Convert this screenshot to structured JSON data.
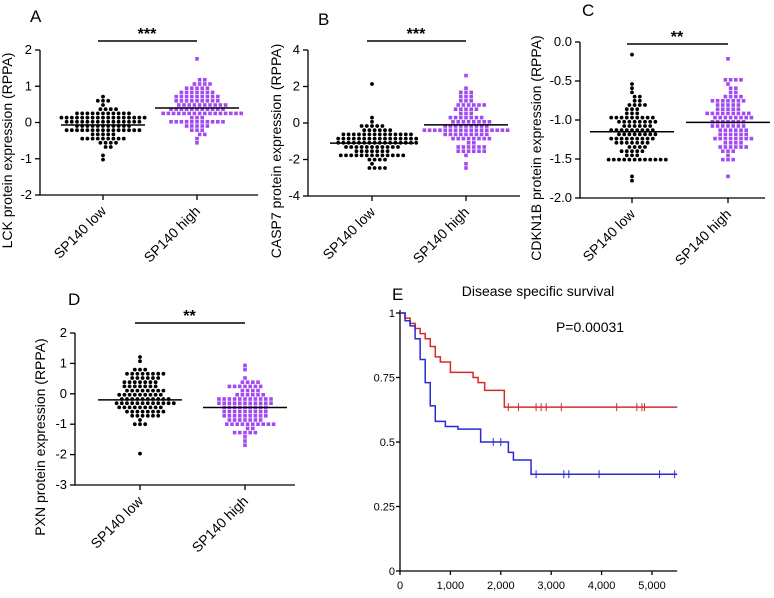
{
  "chart_data": [
    {
      "panel": "A",
      "type": "scatter",
      "style": "dot-plot",
      "ylabel": "LCK protein expression (RPPA)",
      "categories": [
        "SP140 low",
        "SP140 high"
      ],
      "ylim": [
        -2,
        2
      ],
      "yticks": [
        2,
        1,
        0,
        -1,
        -2
      ],
      "ytick_labels": [
        "2",
        "1",
        "0",
        "-1",
        "-2"
      ],
      "significance": "***",
      "groups": [
        {
          "category": "SP140 low",
          "median": -0.07,
          "min": -1.05,
          "max": 0.75,
          "n": 100,
          "color": "#000000",
          "marker": "circle"
        },
        {
          "category": "SP140 high",
          "median": 0.4,
          "min": -0.55,
          "max": 1.7,
          "n": 100,
          "color": "#a24bf0",
          "marker": "square"
        }
      ]
    },
    {
      "panel": "B",
      "type": "scatter",
      "style": "dot-plot",
      "ylabel": "CASP7 protein expression (RPPA)",
      "categories": [
        "SP140 low",
        "SP140 high"
      ],
      "ylim": [
        -4,
        4
      ],
      "yticks": [
        4,
        2,
        0,
        -2,
        -4
      ],
      "ytick_labels": [
        "4",
        "2",
        "0",
        "-2",
        "-4"
      ],
      "significance": "***",
      "groups": [
        {
          "category": "SP140 low",
          "median": -1.1,
          "min": -2.5,
          "max": 2.2,
          "n": 100,
          "color": "#000000",
          "marker": "circle"
        },
        {
          "category": "SP140 high",
          "median": -0.1,
          "min": -2.4,
          "max": 2.7,
          "n": 100,
          "color": "#a24bf0",
          "marker": "square"
        }
      ]
    },
    {
      "panel": "C",
      "type": "scatter",
      "style": "dot-plot",
      "ylabel": "CDKN1B protein expression (RPPA)",
      "categories": [
        "SP140 low",
        "SP140 high"
      ],
      "ylim": [
        -2,
        0
      ],
      "yticks": [
        0,
        -0.5,
        -1,
        -1.5,
        -2
      ],
      "ytick_labels": [
        "0.0",
        "-0.5",
        "-1.0",
        "-1.5",
        "-2.0"
      ],
      "significance": "**",
      "groups": [
        {
          "category": "SP140 low",
          "median": -1.15,
          "min": -1.78,
          "max": -0.15,
          "n": 100,
          "color": "#000000",
          "marker": "circle"
        },
        {
          "category": "SP140 high",
          "median": -1.03,
          "min": -1.7,
          "max": -0.2,
          "n": 100,
          "color": "#a24bf0",
          "marker": "square"
        }
      ]
    },
    {
      "panel": "D",
      "type": "scatter",
      "style": "dot-plot",
      "ylabel": "PXN protein expression (RPPA)",
      "categories": [
        "SP140 low",
        "SP140 high"
      ],
      "ylim": [
        -3,
        2
      ],
      "yticks": [
        2,
        1,
        0,
        -1,
        -2,
        -3
      ],
      "ytick_labels": [
        "2",
        "1",
        "0",
        "-1",
        "-2",
        "-3"
      ],
      "significance": "**",
      "groups": [
        {
          "category": "SP140 low",
          "median": -0.2,
          "min": -1.95,
          "max": 1.25,
          "n": 100,
          "color": "#000000",
          "marker": "circle"
        },
        {
          "category": "SP140 high",
          "median": -0.45,
          "min": -1.75,
          "max": 0.9,
          "n": 100,
          "color": "#a24bf0",
          "marker": "square"
        }
      ]
    },
    {
      "panel": "E",
      "type": "line",
      "style": "kaplan-meier",
      "title": "Disease specific survival",
      "annotation": "P=0.00031",
      "xlim": [
        0,
        5500
      ],
      "ylim": [
        0,
        1
      ],
      "xticks": [
        0,
        1000,
        2000,
        3000,
        4000,
        5000
      ],
      "xtick_labels": [
        "0",
        "1,000",
        "2,000",
        "3,000",
        "4,000",
        "5,000"
      ],
      "yticks": [
        0,
        0.25,
        0.5,
        0.75,
        1
      ],
      "ytick_labels": [
        "0",
        "0.25",
        "0.5",
        "0.75",
        "1"
      ],
      "series": [
        {
          "color": "#d42a2a",
          "x": [
            0,
            100,
            200,
            300,
            400,
            500,
            600,
            700,
            800,
            1000,
            1450,
            1550,
            1680,
            2070,
            5500
          ],
          "y": [
            1,
            0.98,
            0.96,
            0.94,
            0.92,
            0.9,
            0.87,
            0.83,
            0.81,
            0.77,
            0.75,
            0.73,
            0.7,
            0.635,
            0.635
          ],
          "censored": [
            2150,
            2350,
            2700,
            2800,
            2900,
            3200,
            4300,
            4700,
            4800,
            4850
          ]
        },
        {
          "color": "#2a2ad4",
          "x": [
            0,
            100,
            200,
            300,
            400,
            500,
            600,
            700,
            900,
            1150,
            1600,
            2150,
            2250,
            2350,
            2600,
            5500
          ],
          "y": [
            1,
            0.97,
            0.95,
            0.9,
            0.82,
            0.73,
            0.64,
            0.58,
            0.56,
            0.55,
            0.5,
            0.46,
            0.43,
            0.43,
            0.375,
            0.375
          ],
          "censored": [
            1850,
            2000,
            2700,
            3250,
            3350,
            3950,
            5150,
            5450
          ]
        }
      ]
    }
  ]
}
